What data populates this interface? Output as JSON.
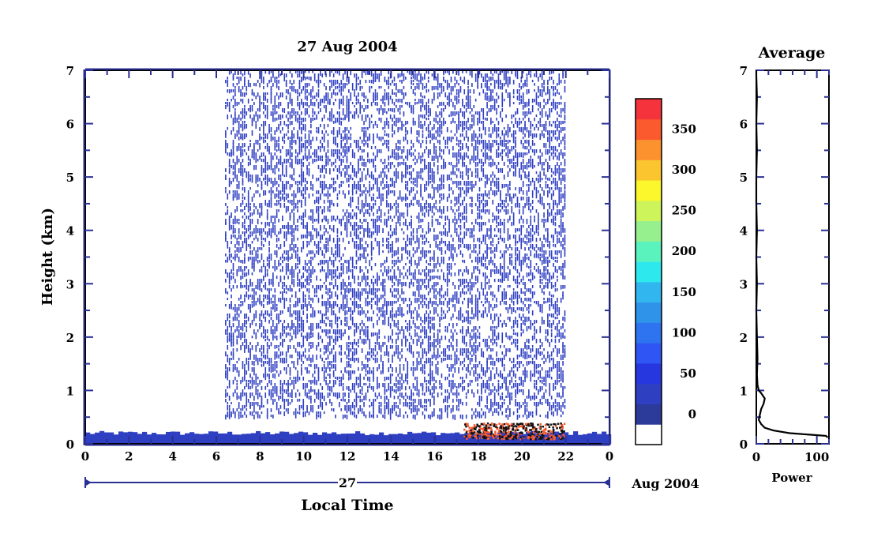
{
  "chart_data": [
    {
      "type": "heatmap",
      "title": "27 Aug 2004",
      "xlabel": "Local Time",
      "ylabel": "Height (km)",
      "xlim": [
        0,
        24
      ],
      "ylim": [
        0,
        7
      ],
      "x_ticks": [
        "0",
        "2",
        "4",
        "6",
        "8",
        "10",
        "12",
        "14",
        "16",
        "18",
        "20",
        "22",
        "0"
      ],
      "y_ticks": [
        "0",
        "1",
        "2",
        "3",
        "4",
        "5",
        "6",
        "7"
      ],
      "date_bar": {
        "day_label": "27",
        "month_year_label": "Aug 2004"
      },
      "features": [
        {
          "name": "surface layer",
          "x_range": [
            0,
            24
          ],
          "height_top_km": 0.2,
          "level": 25
        },
        {
          "name": "scatter region",
          "x_range": [
            6.4,
            22.0
          ],
          "y_range": [
            0.5,
            7.0
          ],
          "level": 25
        },
        {
          "name": "strong echo",
          "x_range": [
            17.3,
            21.9
          ],
          "y_range": [
            0.1,
            0.4
          ],
          "level": 350
        }
      ],
      "colorbar": {
        "tick_labels": [
          "0",
          "50",
          "100",
          "150",
          "200",
          "250",
          "300",
          "350"
        ],
        "levels": [
          {
            "min": 0,
            "color": "#2c3a9a"
          },
          {
            "min": 25,
            "color": "#2f3fc2"
          },
          {
            "min": 50,
            "color": "#2737e0"
          },
          {
            "min": 75,
            "color": "#2f56f5"
          },
          {
            "min": 100,
            "color": "#2e73ef"
          },
          {
            "min": 125,
            "color": "#2f93ea"
          },
          {
            "min": 150,
            "color": "#31b6f0"
          },
          {
            "min": 175,
            "color": "#2de9ee"
          },
          {
            "min": 200,
            "color": "#5af3bd"
          },
          {
            "min": 225,
            "color": "#96f08d"
          },
          {
            "min": 250,
            "color": "#cdf45a"
          },
          {
            "min": 275,
            "color": "#fbf72c"
          },
          {
            "min": 300,
            "color": "#fbc52f"
          },
          {
            "min": 325,
            "color": "#fb922e"
          },
          {
            "min": 350,
            "color": "#fb5a2e"
          },
          {
            "min": 375,
            "color": "#f5333d"
          }
        ],
        "below_zero_color": "#ffffff"
      }
    },
    {
      "type": "line",
      "title": "Average",
      "xlabel": "Power",
      "ylabel": "",
      "xlim": [
        0,
        120
      ],
      "ylim": [
        0,
        7
      ],
      "x_ticks": [
        "0",
        "100"
      ],
      "y_ticks": [
        "0",
        "1",
        "2",
        "3",
        "4",
        "5",
        "6",
        "7"
      ],
      "series": [
        {
          "x": [
            0,
            0,
            1,
            0,
            1,
            0,
            0,
            1,
            0,
            1,
            0,
            1,
            2,
            1,
            2,
            4,
            8,
            14,
            12,
            8,
            6,
            4,
            8,
            14,
            28,
            55,
            90,
            115,
            118
          ],
          "y": [
            7.0,
            6.9,
            6.5,
            6.0,
            5.5,
            5.0,
            4.5,
            4.0,
            3.5,
            3.0,
            2.5,
            2.0,
            1.6,
            1.3,
            1.1,
            1.0,
            0.95,
            0.85,
            0.75,
            0.65,
            0.55,
            0.45,
            0.37,
            0.3,
            0.25,
            0.2,
            0.17,
            0.15,
            0.12
          ]
        }
      ]
    }
  ]
}
